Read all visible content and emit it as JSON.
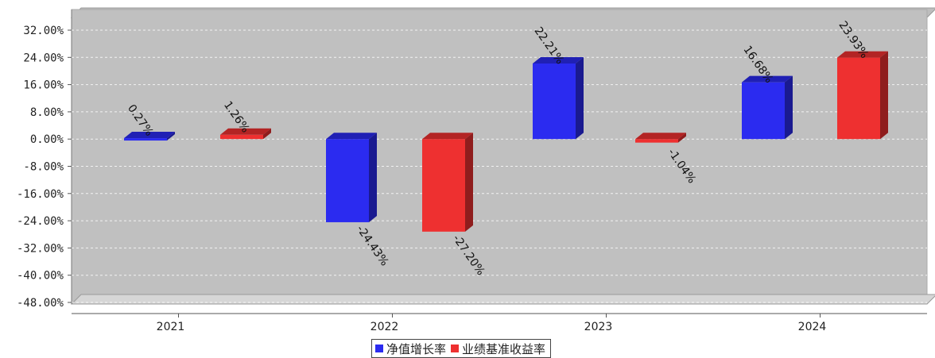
{
  "chart_data": {
    "type": "bar",
    "categories": [
      "2021",
      "2022",
      "2023",
      "2024"
    ],
    "series": [
      {
        "name": "净值增长率",
        "values": [
          0.27,
          -24.43,
          22.21,
          16.68
        ],
        "labels": [
          "0.27%",
          "-24.43%",
          "22.21%",
          "16.68%"
        ],
        "color": "#2b2bf0"
      },
      {
        "name": "业绩基准收益率",
        "values": [
          1.26,
          -27.2,
          -1.04,
          23.93
        ],
        "labels": [
          "1.26%",
          "-27.20%",
          "-1.04%",
          "23.93%"
        ],
        "color": "#ee3030"
      }
    ],
    "ylim": [
      -48,
      32
    ],
    "yticks": [
      -48,
      -40,
      -32,
      -24,
      -16,
      -8,
      0,
      8,
      16,
      24,
      32
    ],
    "ytick_labels": [
      "-48.00%",
      "-40.00%",
      "-32.00%",
      "-24.00%",
      "-16.00%",
      "-8.00%",
      "0.00%",
      "8.00%",
      "16.00%",
      "24.00%",
      "32.00%"
    ],
    "grid": true,
    "legend_position": "bottom-center",
    "title": "",
    "xlabel": "",
    "ylabel": ""
  }
}
